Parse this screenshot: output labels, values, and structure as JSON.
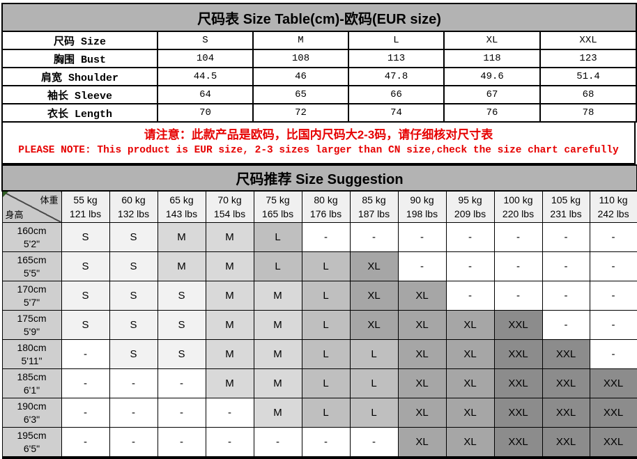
{
  "size_table": {
    "title": "尺码表 Size Table(cm)-欧码(EUR size)",
    "header_label": "尺码 Size",
    "columns": [
      "S",
      "M",
      "L",
      "XL",
      "XXL"
    ],
    "rows": [
      {
        "label": "胸围 Bust",
        "values": [
          "104",
          "108",
          "113",
          "118",
          "123"
        ]
      },
      {
        "label": "肩宽 Shoulder",
        "values": [
          "44.5",
          "46",
          "47.8",
          "49.6",
          "51.4"
        ]
      },
      {
        "label": "袖长 Sleeve",
        "values": [
          "64",
          "65",
          "66",
          "67",
          "68"
        ]
      },
      {
        "label": "衣长 Length",
        "values": [
          "70",
          "72",
          "74",
          "76",
          "78"
        ]
      }
    ]
  },
  "notice": {
    "line_cn": "请注意：此款产品是欧码，比国内尺码大2-3码，请仔细核对尺寸表",
    "line_en": "PLEASE NOTE: This product is EUR size, 2-3 sizes larger than CN size,check the size chart carefully",
    "color": "#e60000"
  },
  "suggestion_table": {
    "title": "尺码推荐 Size Suggestion",
    "corner": {
      "top_right": "体重",
      "bottom_left": "身高"
    },
    "weight_headers": [
      {
        "kg": "55 kg",
        "lbs": "121 lbs"
      },
      {
        "kg": "60 kg",
        "lbs": "132 lbs"
      },
      {
        "kg": "65 kg",
        "lbs": "143 lbs"
      },
      {
        "kg": "70 kg",
        "lbs": "154 lbs"
      },
      {
        "kg": "75 kg",
        "lbs": "165 lbs"
      },
      {
        "kg": "80 kg",
        "lbs": "176 lbs"
      },
      {
        "kg": "85 kg",
        "lbs": "187 lbs"
      },
      {
        "kg": "90 kg",
        "lbs": "198 lbs"
      },
      {
        "kg": "95 kg",
        "lbs": "209 lbs"
      },
      {
        "kg": "100 kg",
        "lbs": "220 lbs"
      },
      {
        "kg": "105 kg",
        "lbs": "231 lbs"
      },
      {
        "kg": "110 kg",
        "lbs": "242 lbs"
      }
    ],
    "rows": [
      {
        "height_cm": "160cm",
        "height_ft": "5'2\"",
        "cells": [
          "S",
          "S",
          "M",
          "M",
          "L",
          "-",
          "-",
          "-",
          "-",
          "-",
          "-",
          "-"
        ]
      },
      {
        "height_cm": "165cm",
        "height_ft": "5'5\"",
        "cells": [
          "S",
          "S",
          "M",
          "M",
          "L",
          "L",
          "XL",
          "-",
          "-",
          "-",
          "-",
          "-"
        ]
      },
      {
        "height_cm": "170cm",
        "height_ft": "5'7\"",
        "cells": [
          "S",
          "S",
          "S",
          "M",
          "M",
          "L",
          "XL",
          "XL",
          "-",
          "-",
          "-",
          "-"
        ]
      },
      {
        "height_cm": "175cm",
        "height_ft": "5'9\"",
        "cells": [
          "S",
          "S",
          "S",
          "M",
          "M",
          "L",
          "XL",
          "XL",
          "XL",
          "XXL",
          "-",
          "-"
        ]
      },
      {
        "height_cm": "180cm",
        "height_ft": "5'11\"",
        "cells": [
          "-",
          "S",
          "S",
          "M",
          "M",
          "L",
          "L",
          "XL",
          "XL",
          "XXL",
          "XXL",
          "-"
        ]
      },
      {
        "height_cm": "185cm",
        "height_ft": "6'1\"",
        "cells": [
          "-",
          "-",
          "-",
          "M",
          "M",
          "L",
          "L",
          "XL",
          "XL",
          "XXL",
          "XXL",
          "XXL"
        ]
      },
      {
        "height_cm": "190cm",
        "height_ft": "6'3\"",
        "cells": [
          "-",
          "-",
          "-",
          "-",
          "M",
          "L",
          "L",
          "XL",
          "XL",
          "XXL",
          "XXL",
          "XXL"
        ]
      },
      {
        "height_cm": "195cm",
        "height_ft": "6'5\"",
        "cells": [
          "-",
          "-",
          "-",
          "-",
          "-",
          "-",
          "-",
          "XL",
          "XL",
          "XXL",
          "XXL",
          "XXL"
        ]
      }
    ],
    "cell_colors": {
      "S": "#f2f2f2",
      "M": "#d9d9d9",
      "L": "#bfbfbf",
      "XL": "#a6a6a6",
      "XXL": "#8c8c8c",
      "-": "#ffffff"
    }
  }
}
